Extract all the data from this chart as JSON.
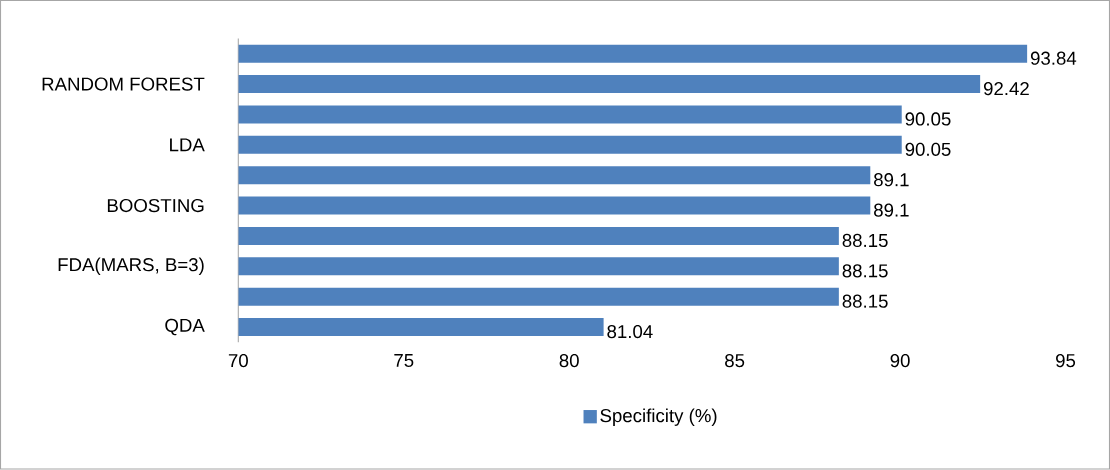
{
  "chart_data": {
    "type": "bar",
    "orientation": "horizontal",
    "categories": [
      null,
      "RANDOM FOREST",
      null,
      "LDA",
      null,
      "BOOSTING",
      null,
      "FDA(MARS, B=3)",
      null,
      "QDA"
    ],
    "series": [
      {
        "name": "Specificity (%)",
        "color": "#4f81bd",
        "values": [
          93.84,
          92.42,
          90.05,
          90.05,
          89.1,
          89.1,
          88.15,
          88.15,
          88.15,
          81.04
        ]
      }
    ],
    "xlim": [
      70,
      95
    ],
    "xticks": [
      70,
      75,
      80,
      85,
      90,
      95
    ],
    "data_labels": true,
    "legend": "bottom",
    "grid": false
  }
}
